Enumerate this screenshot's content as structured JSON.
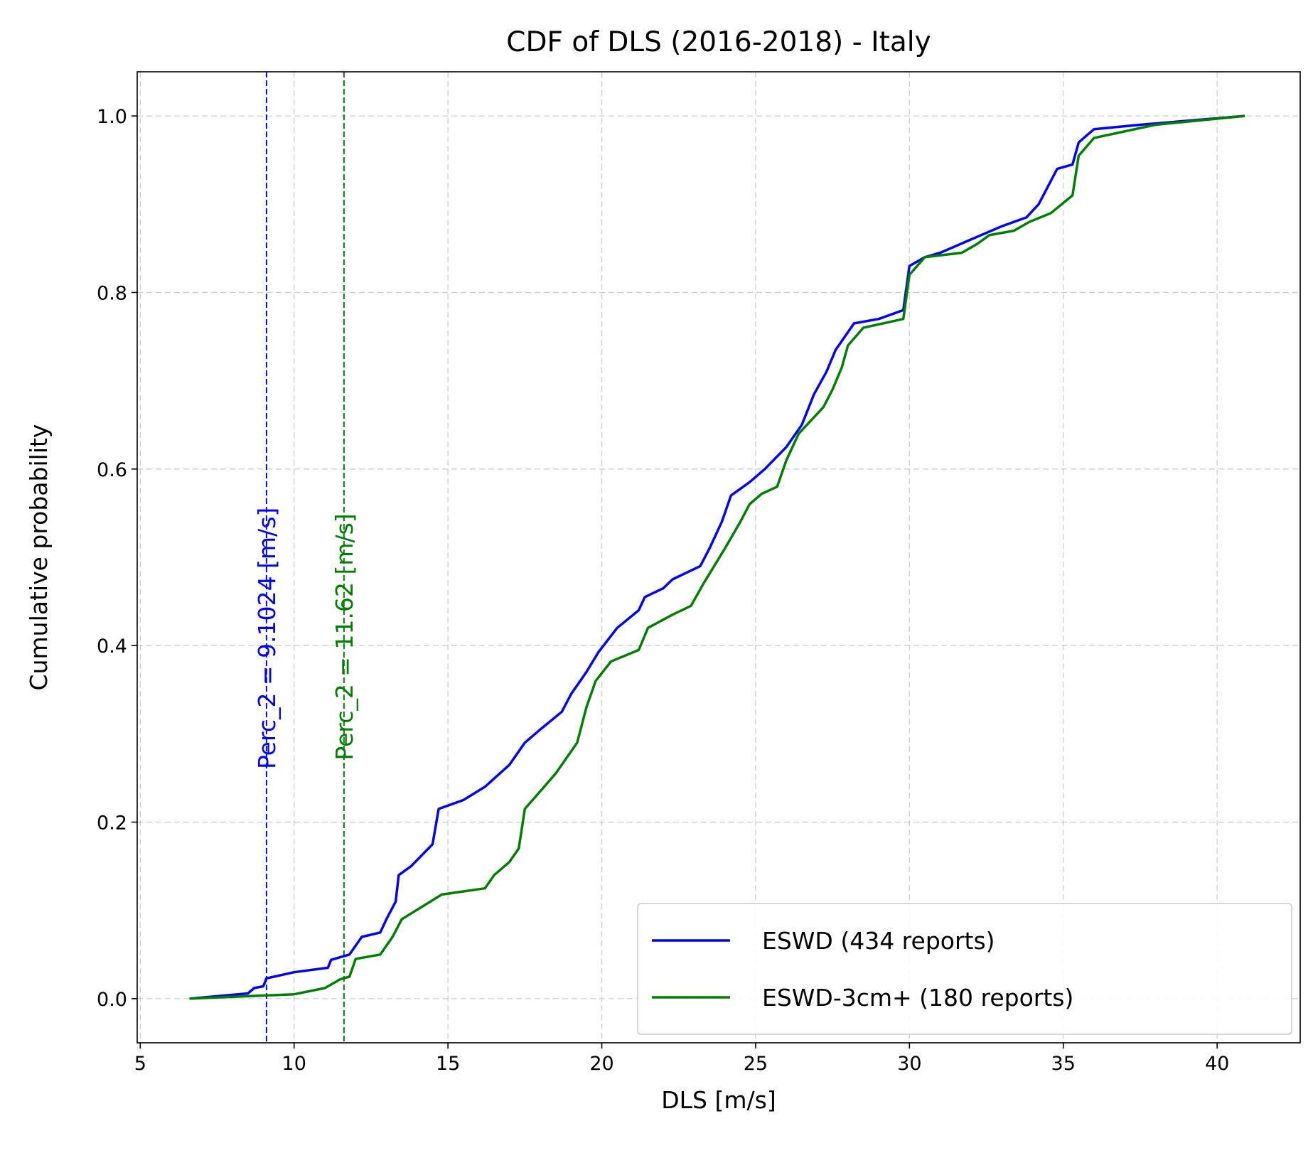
{
  "chart_data": {
    "type": "line",
    "title": "CDF of DLS (2016-2018) - Italy",
    "xlabel": "DLS [m/s]",
    "ylabel": "Cumulative probability",
    "xlim": [
      4.9,
      42.7
    ],
    "ylim": [
      -0.05,
      1.05
    ],
    "xticks": [
      5,
      10,
      15,
      20,
      25,
      30,
      35,
      40
    ],
    "yticks": [
      0.0,
      0.2,
      0.4,
      0.6,
      0.8,
      1.0
    ],
    "xtick_labels": [
      "5",
      "10",
      "15",
      "20",
      "25",
      "30",
      "35",
      "40"
    ],
    "ytick_labels": [
      "0.0",
      "0.2",
      "0.4",
      "0.6",
      "0.8",
      "1.0"
    ],
    "grid": true,
    "legend_position": "bottom-right",
    "series": [
      {
        "name": "ESWD (434 reports)",
        "color": "#0000ff",
        "points": [
          [
            6.6,
            0.0
          ],
          [
            8.5,
            0.006
          ],
          [
            8.7,
            0.012
          ],
          [
            9.0,
            0.014
          ],
          [
            9.1,
            0.023
          ],
          [
            10.0,
            0.03
          ],
          [
            11.1,
            0.035
          ],
          [
            11.2,
            0.044
          ],
          [
            11.8,
            0.05
          ],
          [
            12.2,
            0.07
          ],
          [
            12.8,
            0.075
          ],
          [
            13.0,
            0.09
          ],
          [
            13.3,
            0.11
          ],
          [
            13.4,
            0.14
          ],
          [
            13.8,
            0.15
          ],
          [
            14.5,
            0.175
          ],
          [
            14.7,
            0.215
          ],
          [
            15.5,
            0.225
          ],
          [
            16.2,
            0.24
          ],
          [
            17.0,
            0.265
          ],
          [
            17.5,
            0.29
          ],
          [
            18.0,
            0.305
          ],
          [
            18.7,
            0.325
          ],
          [
            19.0,
            0.345
          ],
          [
            19.5,
            0.37
          ],
          [
            19.9,
            0.393
          ],
          [
            20.5,
            0.42
          ],
          [
            21.2,
            0.44
          ],
          [
            21.4,
            0.455
          ],
          [
            22.0,
            0.465
          ],
          [
            22.3,
            0.475
          ],
          [
            23.2,
            0.49
          ],
          [
            23.5,
            0.51
          ],
          [
            23.9,
            0.54
          ],
          [
            24.2,
            0.57
          ],
          [
            24.8,
            0.585
          ],
          [
            25.3,
            0.6
          ],
          [
            26.0,
            0.625
          ],
          [
            26.5,
            0.65
          ],
          [
            26.9,
            0.685
          ],
          [
            27.3,
            0.71
          ],
          [
            27.6,
            0.735
          ],
          [
            28.2,
            0.765
          ],
          [
            29.0,
            0.77
          ],
          [
            29.8,
            0.78
          ],
          [
            30.0,
            0.83
          ],
          [
            30.5,
            0.84
          ],
          [
            31.0,
            0.845
          ],
          [
            32.0,
            0.86
          ],
          [
            33.0,
            0.875
          ],
          [
            33.8,
            0.885
          ],
          [
            34.2,
            0.9
          ],
          [
            34.5,
            0.92
          ],
          [
            34.8,
            0.94
          ],
          [
            35.3,
            0.945
          ],
          [
            35.5,
            0.97
          ],
          [
            36.0,
            0.985
          ],
          [
            37.5,
            0.99
          ],
          [
            40.9,
            1.0
          ]
        ]
      },
      {
        "name": "ESWD-3cm+ (180 reports)",
        "color": "#008000",
        "points": [
          [
            6.6,
            0.0
          ],
          [
            10.0,
            0.005
          ],
          [
            11.0,
            0.012
          ],
          [
            11.5,
            0.022
          ],
          [
            11.8,
            0.025
          ],
          [
            12.0,
            0.045
          ],
          [
            12.8,
            0.05
          ],
          [
            13.2,
            0.07
          ],
          [
            13.5,
            0.09
          ],
          [
            14.8,
            0.118
          ],
          [
            15.2,
            0.12
          ],
          [
            16.2,
            0.125
          ],
          [
            16.5,
            0.14
          ],
          [
            17.0,
            0.155
          ],
          [
            17.3,
            0.17
          ],
          [
            17.5,
            0.215
          ],
          [
            18.0,
            0.235
          ],
          [
            18.5,
            0.255
          ],
          [
            18.8,
            0.27
          ],
          [
            19.2,
            0.29
          ],
          [
            19.5,
            0.33
          ],
          [
            19.8,
            0.36
          ],
          [
            20.3,
            0.382
          ],
          [
            21.2,
            0.395
          ],
          [
            21.5,
            0.42
          ],
          [
            22.3,
            0.435
          ],
          [
            22.9,
            0.445
          ],
          [
            23.3,
            0.47
          ],
          [
            24.0,
            0.51
          ],
          [
            24.5,
            0.54
          ],
          [
            24.8,
            0.56
          ],
          [
            25.2,
            0.572
          ],
          [
            25.7,
            0.58
          ],
          [
            26.0,
            0.61
          ],
          [
            26.4,
            0.64
          ],
          [
            26.8,
            0.655
          ],
          [
            27.2,
            0.67
          ],
          [
            27.5,
            0.69
          ],
          [
            27.8,
            0.715
          ],
          [
            28.0,
            0.74
          ],
          [
            28.5,
            0.76
          ],
          [
            29.8,
            0.77
          ],
          [
            30.0,
            0.82
          ],
          [
            30.5,
            0.84
          ],
          [
            31.7,
            0.845
          ],
          [
            32.2,
            0.855
          ],
          [
            32.6,
            0.865
          ],
          [
            33.4,
            0.87
          ],
          [
            33.9,
            0.88
          ],
          [
            34.6,
            0.89
          ],
          [
            35.3,
            0.91
          ],
          [
            35.5,
            0.955
          ],
          [
            36.0,
            0.975
          ],
          [
            38.0,
            0.99
          ],
          [
            40.9,
            1.0
          ]
        ]
      }
    ],
    "vlines": [
      {
        "x": 9.1024,
        "color": "#0000ff",
        "label": "Perc_2 = 9.1024 [m/s]"
      },
      {
        "x": 11.62,
        "color": "#008000",
        "label": "Perc_2 = 11.62 [m/s]"
      }
    ]
  }
}
